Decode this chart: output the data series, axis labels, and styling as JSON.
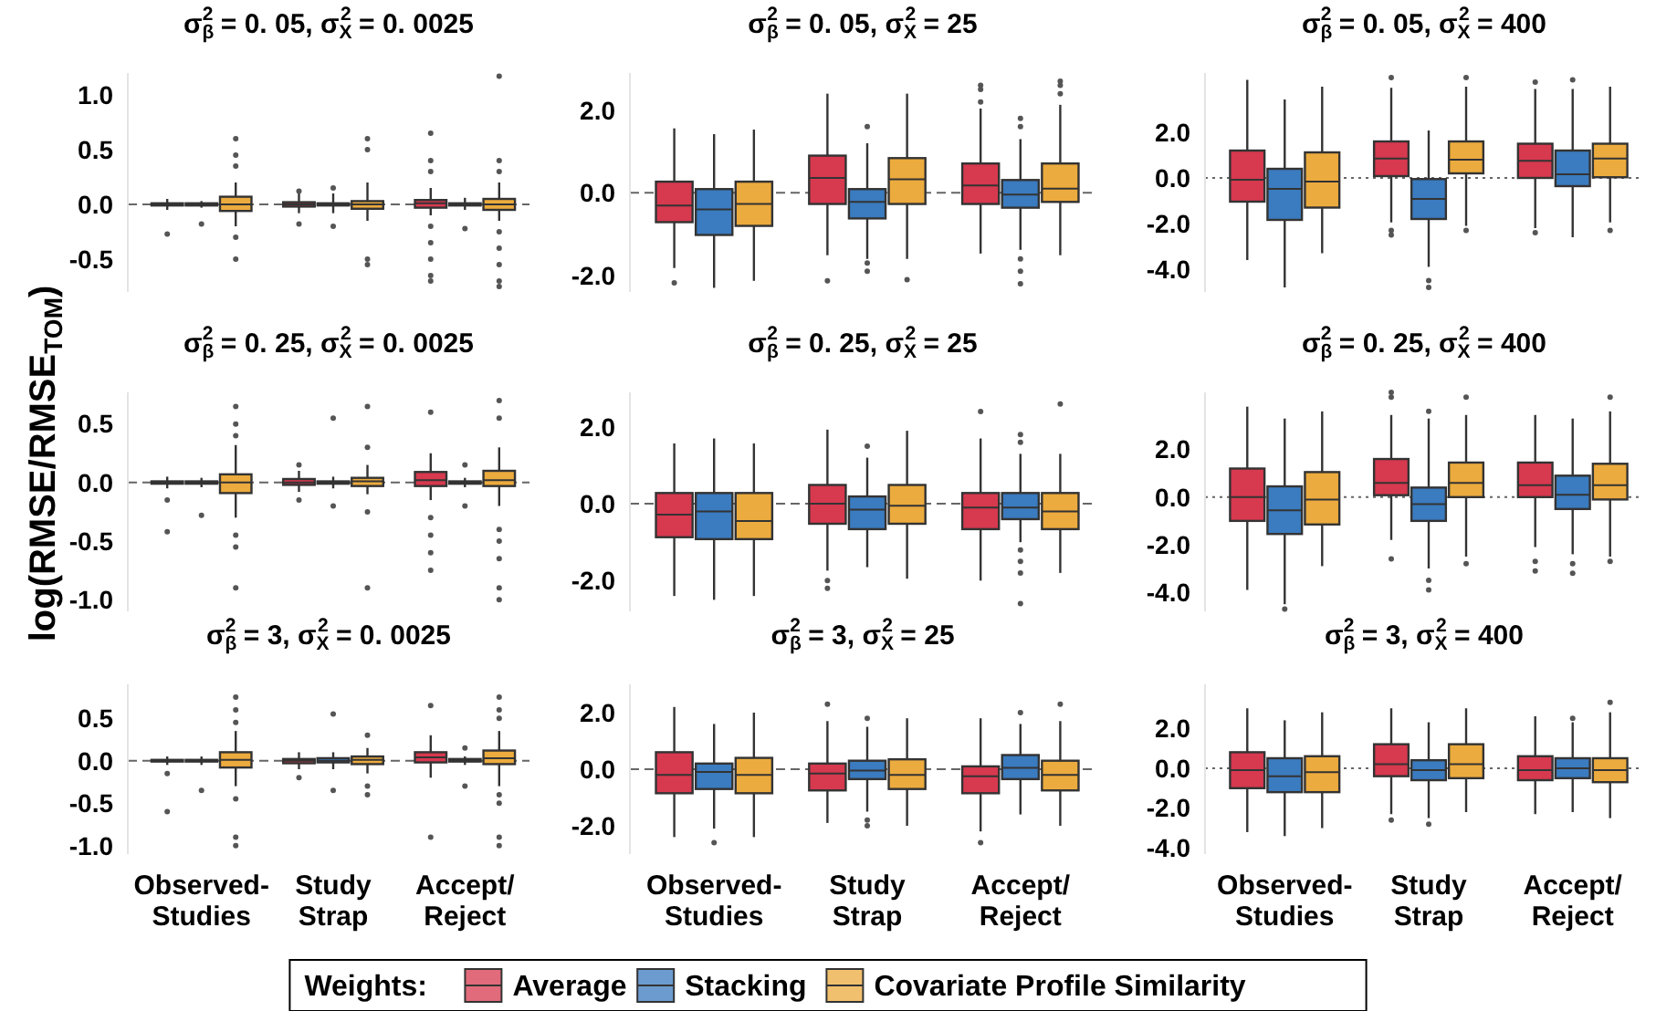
{
  "chart_data": [
    {
      "type": "box",
      "title": "σ$_{β}$$^{2}$ = 0. 05, σ$_{X}$$^{2}$ = 0. 0025",
      "categories": [
        null,
        null,
        null
      ],
      "ylim": [
        -0.8,
        1.2
      ],
      "yticks": [
        {
          "value": -0.5,
          "label": "-0.5"
        },
        {
          "value": 0,
          "label": "0.0"
        },
        {
          "value": 0.5,
          "label": "0.5"
        },
        {
          "value": 1,
          "label": "1.0"
        }
      ],
      "tick_labels": "y",
      "legend": "bottom",
      "legend_title": "Weights:",
      "ref_lines": [
        {
          "axis": "y",
          "value": 0,
          "line_style": "dashed"
        }
      ],
      "series": [
        {
          "name": "Average",
          "color": "#d7394f",
          "boxes": [
            {
              "low": -0.05,
              "q1": -0.01,
              "median": 0,
              "q3": 0.01,
              "high": 0.05,
              "outliers": [
                -0.27
              ]
            },
            {
              "low": -0.08,
              "q1": -0.02,
              "median": 0,
              "q3": 0.02,
              "high": 0.1,
              "outliers": [
                -0.18,
                0.12
              ]
            },
            {
              "low": -0.1,
              "q1": -0.03,
              "median": 0.01,
              "q3": 0.04,
              "high": 0.15,
              "outliers": [
                0.65,
                0.4,
                0.3,
                -0.2,
                -0.35,
                -0.5,
                -0.65,
                -0.7
              ]
            }
          ]
        },
        {
          "name": "Stacking",
          "color": "#3b7bbf",
          "boxes": [
            {
              "low": -0.03,
              "q1": -0.01,
              "median": 0,
              "q3": 0.01,
              "high": 0.03,
              "outliers": [
                -0.18
              ]
            },
            {
              "low": -0.08,
              "q1": -0.01,
              "median": 0,
              "q3": 0.01,
              "high": 0.1,
              "outliers": [
                -0.2,
                0.15
              ]
            },
            {
              "low": -0.05,
              "q1": -0.01,
              "median": 0,
              "q3": 0.01,
              "high": 0.06,
              "outliers": [
                -0.22
              ]
            }
          ]
        },
        {
          "name": "Covariate Profile Similarity",
          "color": "#ecab3e",
          "boxes": [
            {
              "low": -0.2,
              "q1": -0.06,
              "median": 0,
              "q3": 0.07,
              "high": 0.2,
              "outliers": [
                0.6,
                0.45,
                0.35,
                -0.3,
                -0.5
              ]
            },
            {
              "low": -0.15,
              "q1": -0.04,
              "median": 0,
              "q3": 0.03,
              "high": 0.2,
              "outliers": [
                0.6,
                0.5,
                -0.5,
                -0.55
              ]
            },
            {
              "low": -0.15,
              "q1": -0.05,
              "median": 0,
              "q3": 0.05,
              "high": 0.2,
              "outliers": [
                1.17,
                0.4,
                0.3,
                -0.25,
                -0.4,
                -0.55,
                -0.7,
                -0.75
              ]
            }
          ]
        }
      ]
    },
    {
      "type": "box",
      "title": "σ$_{β}$$^{2}$ = 0. 05, σ$_{X}$$^{2}$ = 25",
      "categories": [
        null,
        null,
        null
      ],
      "ylim": [
        -2.4,
        2.9
      ],
      "yticks": [
        {
          "value": -2,
          "label": "-2.0"
        },
        {
          "value": 0,
          "label": "0.0"
        },
        {
          "value": 2,
          "label": "2.0"
        }
      ],
      "tick_labels": "y",
      "ref_lines": [
        {
          "axis": "y",
          "value": 0,
          "line_style": "dashed"
        }
      ],
      "series": [
        {
          "color": "#d7394f",
          "boxes": [
            {
              "low": -1.82,
              "q1": -0.71,
              "median": -0.31,
              "q3": 0.27,
              "high": 1.56,
              "outliers": [
                -2.18
              ]
            },
            {
              "low": -1.51,
              "q1": -0.27,
              "median": 0.36,
              "q3": 0.9,
              "high": 2.4,
              "outliers": [
                -2.13
              ]
            },
            {
              "low": -1.47,
              "q1": -0.27,
              "median": 0.18,
              "q3": 0.71,
              "high": 2.04,
              "outliers": [
                2.2,
                2.5,
                2.6
              ]
            }
          ]
        },
        {
          "color": "#3b7bbf",
          "boxes": [
            {
              "low": -2.3,
              "q1": -1.02,
              "median": -0.4,
              "q3": 0.09,
              "high": 1.42
            },
            {
              "low": -1.6,
              "q1": -0.62,
              "median": -0.22,
              "q3": 0.09,
              "high": 1.2,
              "outliers": [
                1.6,
                -1.7,
                -1.9
              ]
            },
            {
              "low": -1.38,
              "q1": -0.36,
              "median": -0.04,
              "q3": 0.31,
              "high": 1.3,
              "outliers": [
                1.6,
                1.8,
                -1.6,
                -1.9,
                -2.2
              ]
            }
          ]
        },
        {
          "color": "#ecab3e",
          "boxes": [
            {
              "low": -2.13,
              "q1": -0.8,
              "median": -0.27,
              "q3": 0.27,
              "high": 1.53
            },
            {
              "low": -1.6,
              "q1": -0.27,
              "median": 0.33,
              "q3": 0.84,
              "high": 2.4,
              "outliers": [
                -2.1
              ]
            },
            {
              "low": -1.51,
              "q1": -0.22,
              "median": 0.1,
              "q3": 0.71,
              "high": 2.13,
              "outliers": [
                2.4,
                2.6,
                2.7
              ]
            }
          ]
        }
      ]
    },
    {
      "type": "box",
      "title": "σ$_{β}$$^{2}$ = 0. 05, σ$_{X}$$^{2}$ = 400",
      "categories": [
        null,
        null,
        null
      ],
      "ylim": [
        -5,
        4.6
      ],
      "yticks": [
        {
          "value": -4,
          "label": "-4.0"
        },
        {
          "value": -2,
          "label": "-2.0"
        },
        {
          "value": 0,
          "label": "0.0"
        },
        {
          "value": 2,
          "label": "2.0"
        }
      ],
      "tick_labels": "y",
      "ref_lines": [
        {
          "axis": "y",
          "value": 0,
          "line_style": "dotted"
        }
      ],
      "series": [
        {
          "color": "#d7394f",
          "boxes": [
            {
              "low": -3.6,
              "q1": -1.04,
              "median": -0.08,
              "q3": 1.2,
              "high": 4.3
            },
            {
              "low": -1.95,
              "q1": 0.08,
              "median": 0.85,
              "q3": 1.6,
              "high": 3.95,
              "outliers": [
                4.4,
                -2.3,
                -2.5
              ]
            },
            {
              "low": -2.2,
              "q1": 0,
              "median": 0.75,
              "q3": 1.5,
              "high": 3.9,
              "outliers": [
                4.2,
                -2.4
              ]
            }
          ]
        },
        {
          "color": "#3b7bbf",
          "boxes": [
            {
              "low": -4.8,
              "q1": -1.84,
              "median": -0.48,
              "q3": 0.4,
              "high": 3.44
            },
            {
              "low": -3.9,
              "q1": -1.8,
              "median": -0.92,
              "q3": -0.05,
              "high": 2.08,
              "outliers": [
                -4.5,
                -4.8
              ]
            },
            {
              "low": -2.6,
              "q1": -0.36,
              "median": 0.16,
              "q3": 1.2,
              "high": 3.9,
              "outliers": [
                4.3
              ]
            }
          ]
        },
        {
          "color": "#ecab3e",
          "boxes": [
            {
              "low": -3.3,
              "q1": -1.3,
              "median": -0.16,
              "q3": 1.12,
              "high": 4
            },
            {
              "low": -2.1,
              "q1": 0.2,
              "median": 0.8,
              "q3": 1.6,
              "high": 4,
              "outliers": [
                4.4,
                -2.3
              ]
            },
            {
              "low": -1.95,
              "q1": 0.03,
              "median": 0.85,
              "q3": 1.5,
              "high": 4,
              "outliers": [
                -2.3
              ]
            }
          ]
        }
      ]
    },
    {
      "type": "box",
      "title": "σ$_{β}$$^{2}$ = 0. 25, σ$_{X}$$^{2}$ = 0. 0025",
      "categories": [
        null,
        null,
        null
      ],
      "ylim": [
        -1.1,
        0.77
      ],
      "yticks": [
        {
          "value": -1,
          "label": "-1.0"
        },
        {
          "value": -0.5,
          "label": "-0.5"
        },
        {
          "value": 0,
          "label": "0.0"
        },
        {
          "value": 0.5,
          "label": "0.5"
        }
      ],
      "tick_labels": "y",
      "ylabel": "log(RMSE/RMSE$_{TOM}$)",
      "ref_lines": [
        {
          "axis": "y",
          "value": 0,
          "line_style": "dashed"
        }
      ],
      "series": [
        {
          "color": "#d7394f",
          "boxes": [
            {
              "low": -0.05,
              "q1": -0.01,
              "median": 0,
              "q3": 0.01,
              "high": 0.05,
              "outliers": [
                -0.42,
                -0.15
              ]
            },
            {
              "low": -0.08,
              "q1": -0.02,
              "median": 0,
              "q3": 0.03,
              "high": 0.1,
              "outliers": [
                0.15,
                -0.15
              ]
            },
            {
              "low": -0.15,
              "q1": -0.03,
              "median": 0.02,
              "q3": 0.09,
              "high": 0.25,
              "outliers": [
                0.6,
                -0.3,
                -0.45,
                -0.6,
                -0.75
              ]
            }
          ]
        },
        {
          "color": "#3b7bbf",
          "boxes": [
            {
              "low": -0.04,
              "q1": -0.01,
              "median": 0,
              "q3": 0.01,
              "high": 0.04,
              "outliers": [
                -0.28
              ]
            },
            {
              "low": -0.05,
              "q1": -0.01,
              "median": 0,
              "q3": 0.01,
              "high": 0.05,
              "outliers": [
                0.55,
                -0.2
              ]
            },
            {
              "low": -0.04,
              "q1": -0.01,
              "median": 0,
              "q3": 0.01,
              "high": 0.04,
              "outliers": [
                0.15,
                -0.2
              ]
            }
          ]
        },
        {
          "color": "#ecab3e",
          "boxes": [
            {
              "low": -0.3,
              "q1": -0.09,
              "median": 0,
              "q3": 0.07,
              "high": 0.32,
              "outliers": [
                0.65,
                0.5,
                0.4,
                -0.45,
                -0.55,
                -0.9
              ]
            },
            {
              "low": -0.1,
              "q1": -0.03,
              "median": 0.01,
              "q3": 0.04,
              "high": 0.15,
              "outliers": [
                0.65,
                0.3,
                -0.25,
                -0.9
              ]
            },
            {
              "low": -0.2,
              "q1": -0.03,
              "median": 0.02,
              "q3": 0.1,
              "high": 0.3,
              "outliers": [
                0.7,
                0.55,
                -0.4,
                -0.5,
                -0.65,
                -0.9,
                -1
              ]
            }
          ]
        }
      ]
    },
    {
      "type": "box",
      "title": "σ$_{β}$$^{2}$ = 0. 25, σ$_{X}$$^{2}$ = 25",
      "categories": [
        null,
        null,
        null
      ],
      "ylim": [
        -2.8,
        2.9
      ],
      "yticks": [
        {
          "value": -2,
          "label": "-2.0"
        },
        {
          "value": 0,
          "label": "0.0"
        },
        {
          "value": 2,
          "label": "2.0"
        }
      ],
      "tick_labels": "y",
      "ref_lines": [
        {
          "axis": "y",
          "value": 0,
          "line_style": "dashed"
        }
      ],
      "series": [
        {
          "color": "#d7394f",
          "boxes": [
            {
              "low": -2.4,
              "q1": -0.87,
              "median": -0.28,
              "q3": 0.28,
              "high": 1.57
            },
            {
              "low": -1.74,
              "q1": -0.52,
              "median": 0,
              "q3": 0.49,
              "high": 1.93,
              "outliers": [
                -2,
                -2.2
              ]
            },
            {
              "low": -2,
              "q1": -0.66,
              "median": -0.1,
              "q3": 0.28,
              "high": 1.7,
              "outliers": [
                2.4
              ]
            }
          ]
        },
        {
          "color": "#3b7bbf",
          "boxes": [
            {
              "low": -2.5,
              "q1": -0.92,
              "median": -0.2,
              "q3": 0.28,
              "high": 1.7
            },
            {
              "low": -1.65,
              "q1": -0.66,
              "median": -0.15,
              "q3": 0.19,
              "high": 1.2,
              "outliers": [
                1.5
              ]
            },
            {
              "low": -1,
              "q1": -0.4,
              "median": -0.1,
              "q3": 0.28,
              "high": 1.3,
              "outliers": [
                1.6,
                1.8,
                -1.2,
                -1.5,
                -1.8,
                -2.6
              ]
            }
          ]
        },
        {
          "color": "#ecab3e",
          "boxes": [
            {
              "low": -2.4,
              "q1": -0.92,
              "median": -0.45,
              "q3": 0.28,
              "high": 1.57
            },
            {
              "low": -1.95,
              "q1": -0.52,
              "median": -0.05,
              "q3": 0.49,
              "high": 1.9
            },
            {
              "low": -1.8,
              "q1": -0.66,
              "median": -0.2,
              "q3": 0.28,
              "high": 1.3,
              "outliers": [
                2.6
              ]
            }
          ]
        }
      ]
    },
    {
      "type": "box",
      "title": "σ$_{β}$$^{2}$ = 0. 25, σ$_{X}$$^{2}$ = 400",
      "categories": [
        null,
        null,
        null
      ],
      "ylim": [
        -4.8,
        4.4
      ],
      "yticks": [
        {
          "value": -4,
          "label": "-4.0"
        },
        {
          "value": -2,
          "label": "-2.0"
        },
        {
          "value": 0,
          "label": "0.0"
        },
        {
          "value": 2,
          "label": "2.0"
        }
      ],
      "tick_labels": "y",
      "ref_lines": [
        {
          "axis": "y",
          "value": 0,
          "line_style": "dotted"
        }
      ],
      "series": [
        {
          "color": "#d7394f",
          "boxes": [
            {
              "low": -3.9,
              "q1": -1,
              "median": 0,
              "q3": 1.2,
              "high": 3.8
            },
            {
              "low": -1.8,
              "q1": 0.08,
              "median": 0.6,
              "q3": 1.6,
              "high": 3.45,
              "outliers": [
                4.2,
                4.4,
                -2.6
              ]
            },
            {
              "low": -2.1,
              "q1": 0,
              "median": 0.5,
              "q3": 1.45,
              "high": 3.45,
              "outliers": [
                -2.7,
                -3.1
              ]
            }
          ]
        },
        {
          "color": "#3b7bbf",
          "boxes": [
            {
              "low": -4.5,
              "q1": -1.55,
              "median": -0.55,
              "q3": 0.45,
              "high": 3.3,
              "outliers": [
                -4.7
              ]
            },
            {
              "low": -3,
              "q1": -1,
              "median": -0.3,
              "q3": 0.4,
              "high": 3.3,
              "outliers": [
                3.6,
                -3.5,
                -3.9
              ]
            },
            {
              "low": -2.4,
              "q1": -0.5,
              "median": 0.1,
              "q3": 0.9,
              "high": 3.3,
              "outliers": [
                -2.8,
                -3.2
              ]
            }
          ]
        },
        {
          "color": "#ecab3e",
          "boxes": [
            {
              "low": -2.9,
              "q1": -1.15,
              "median": -0.1,
              "q3": 1.05,
              "high": 3.6
            },
            {
              "low": -2.5,
              "q1": 0,
              "median": 0.6,
              "q3": 1.45,
              "high": 3.45,
              "outliers": [
                4.2,
                -2.8
              ]
            },
            {
              "low": -2.5,
              "q1": -0.1,
              "median": 0.5,
              "q3": 1.4,
              "high": 3.6,
              "outliers": [
                4.2,
                -2.7
              ]
            }
          ]
        }
      ]
    },
    {
      "type": "box",
      "title": "σ$_{β}$$^{2}$ = 3, σ$_{X}$$^{2}$ = 0. 0025",
      "categories": [
        "Observed-Studies",
        "Study Strap",
        "Accept/Reject"
      ],
      "ylim": [
        -1.1,
        0.9
      ],
      "yticks": [
        {
          "value": -1,
          "label": "-1.0"
        },
        {
          "value": -0.5,
          "label": "-0.5"
        },
        {
          "value": 0,
          "label": "0.0"
        },
        {
          "value": 0.5,
          "label": "0.5"
        }
      ],
      "ref_lines": [
        {
          "axis": "y",
          "value": 0,
          "line_style": "dashed"
        }
      ],
      "series": [
        {
          "color": "#d7394f",
          "boxes": [
            {
              "low": -0.05,
              "q1": -0.01,
              "median": 0,
              "q3": 0.01,
              "high": 0.05,
              "outliers": [
                -0.6,
                -0.15
              ]
            },
            {
              "low": -0.1,
              "q1": -0.03,
              "median": 0,
              "q3": 0.02,
              "high": 0.1,
              "outliers": [
                -0.2
              ]
            },
            {
              "low": -0.2,
              "q1": -0.02,
              "median": 0.04,
              "q3": 0.1,
              "high": 0.3,
              "outliers": [
                0.65,
                -0.9
              ]
            }
          ]
        },
        {
          "color": "#3b7bbf",
          "boxes": [
            {
              "low": -0.05,
              "q1": -0.01,
              "median": 0,
              "q3": 0.01,
              "high": 0.05,
              "outliers": [
                -0.35
              ]
            },
            {
              "low": -0.1,
              "q1": -0.02,
              "median": 0,
              "q3": 0.03,
              "high": 0.1,
              "outliers": [
                0.55,
                -0.35
              ]
            },
            {
              "low": -0.05,
              "q1": -0.01,
              "median": 0,
              "q3": 0.02,
              "high": 0.05,
              "outliers": [
                0.15,
                -0.3
              ]
            }
          ]
        },
        {
          "color": "#ecab3e",
          "boxes": [
            {
              "low": -0.3,
              "q1": -0.08,
              "median": 0.01,
              "q3": 0.1,
              "high": 0.35,
              "outliers": [
                0.75,
                0.6,
                0.45,
                -0.45,
                -0.9,
                -1
              ]
            },
            {
              "low": -0.15,
              "q1": -0.04,
              "median": 0.01,
              "q3": 0.05,
              "high": 0.15,
              "outliers": [
                0.3,
                -0.3,
                -0.4
              ]
            },
            {
              "low": -0.3,
              "q1": -0.04,
              "median": 0.03,
              "q3": 0.12,
              "high": 0.35,
              "outliers": [
                0.75,
                0.6,
                0.5,
                -0.4,
                -0.5,
                -0.9,
                -1
              ]
            }
          ]
        }
      ]
    },
    {
      "type": "box",
      "title": "σ$_{β}$$^{2}$ = 3, σ$_{X}$$^{2}$ = 25",
      "categories": [
        "Observed-Studies",
        "Study Strap",
        "Accept/Reject"
      ],
      "ylim": [
        -3,
        3
      ],
      "yticks": [
        {
          "value": -2,
          "label": "-2.0"
        },
        {
          "value": 0,
          "label": "0.0"
        },
        {
          "value": 2,
          "label": "2.0"
        }
      ],
      "ref_lines": [
        {
          "axis": "y",
          "value": 0,
          "line_style": "dashed"
        }
      ],
      "series": [
        {
          "color": "#d7394f",
          "boxes": [
            {
              "low": -2.4,
              "q1": -0.85,
              "median": -0.2,
              "q3": 0.6,
              "high": 2.2
            },
            {
              "low": -1.9,
              "q1": -0.75,
              "median": -0.15,
              "q3": 0.2,
              "high": 1.7,
              "outliers": [
                2.3
              ]
            },
            {
              "low": -2.2,
              "q1": -0.85,
              "median": -0.25,
              "q3": 0.1,
              "high": 1.8,
              "outliers": [
                -2.6
              ]
            }
          ]
        },
        {
          "color": "#3b7bbf",
          "boxes": [
            {
              "low": -2.1,
              "q1": -0.7,
              "median": -0.1,
              "q3": 0.2,
              "high": 1.6,
              "outliers": [
                -2.6
              ]
            },
            {
              "low": -1.5,
              "q1": -0.35,
              "median": -0.05,
              "q3": 0.3,
              "high": 1.5,
              "outliers": [
                1.8,
                -1.8,
                -2
              ]
            },
            {
              "low": -1.6,
              "q1": -0.35,
              "median": 0.05,
              "q3": 0.5,
              "high": 1.6,
              "outliers": [
                2
              ]
            }
          ]
        },
        {
          "color": "#ecab3e",
          "boxes": [
            {
              "low": -2.4,
              "q1": -0.85,
              "median": -0.2,
              "q3": 0.4,
              "high": 2
            },
            {
              "low": -2,
              "q1": -0.7,
              "median": -0.2,
              "q3": 0.35,
              "high": 1.8
            },
            {
              "low": -2,
              "q1": -0.75,
              "median": -0.2,
              "q3": 0.3,
              "high": 1.7,
              "outliers": [
                2.3
              ]
            }
          ]
        }
      ]
    },
    {
      "type": "box",
      "title": "σ$_{β}$$^{2}$ = 3, σ$_{X}$$^{2}$ = 400",
      "categories": [
        "Observed-Studies",
        "Study Strap",
        "Accept/Reject"
      ],
      "ylim": [
        -4.3,
        4.2
      ],
      "yticks": [
        {
          "value": -4,
          "label": "-4.0"
        },
        {
          "value": -2,
          "label": "-2.0"
        },
        {
          "value": 0,
          "label": "0.0"
        },
        {
          "value": 2,
          "label": "2.0"
        }
      ],
      "ref_lines": [
        {
          "axis": "y",
          "value": 0,
          "line_style": "dotted"
        }
      ],
      "series": [
        {
          "color": "#d7394f",
          "boxes": [
            {
              "low": -3.2,
              "q1": -1,
              "median": -0.1,
              "q3": 0.8,
              "high": 3
            },
            {
              "low": -2.3,
              "q1": -0.4,
              "median": 0.2,
              "q3": 1.2,
              "high": 3,
              "outliers": [
                -2.6
              ]
            },
            {
              "low": -2.3,
              "q1": -0.6,
              "median": -0.1,
              "q3": 0.6,
              "high": 2.6
            }
          ]
        },
        {
          "color": "#3b7bbf",
          "boxes": [
            {
              "low": -3.4,
              "q1": -1.2,
              "median": -0.4,
              "q3": 0.5,
              "high": 2.4
            },
            {
              "low": -2.5,
              "q1": -0.6,
              "median": -0.1,
              "q3": 0.4,
              "high": 2.3,
              "outliers": [
                -2.8
              ]
            },
            {
              "low": -2.2,
              "q1": -0.5,
              "median": 0,
              "q3": 0.5,
              "high": 2.3,
              "outliers": [
                2.5
              ]
            }
          ]
        },
        {
          "color": "#ecab3e",
          "boxes": [
            {
              "low": -3,
              "q1": -1.2,
              "median": -0.2,
              "q3": 0.6,
              "high": 2.8
            },
            {
              "low": -2.2,
              "q1": -0.5,
              "median": 0.2,
              "q3": 1.2,
              "high": 3
            },
            {
              "low": -2.5,
              "q1": -0.7,
              "median": -0.1,
              "q3": 0.5,
              "high": 2.8,
              "outliers": [
                3.3
              ]
            }
          ]
        }
      ]
    }
  ]
}
